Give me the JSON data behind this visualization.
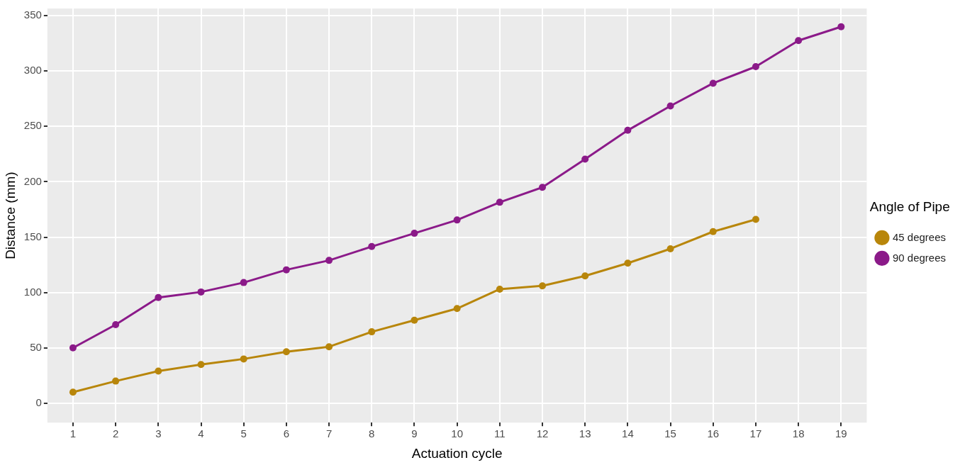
{
  "chart_data": {
    "type": "line",
    "xlabel": "Actuation cycle",
    "ylabel": "Distance (mm)",
    "legend_title": "Angle of Pipe",
    "legend": "right",
    "grid": true,
    "marker": "circle",
    "line_style": "solid",
    "xlim": [
      0.4,
      19.6
    ],
    "xticks": [
      1,
      2,
      3,
      4,
      5,
      6,
      7,
      8,
      9,
      10,
      11,
      12,
      13,
      14,
      15,
      16,
      17,
      18,
      19
    ],
    "ylim": [
      -17.5,
      356.5
    ],
    "yticks": [
      0,
      50,
      100,
      150,
      200,
      250,
      300,
      350
    ],
    "series": [
      {
        "name": "45 degrees",
        "color": "#b8860b",
        "x": [
          1,
          2,
          3,
          4,
          5,
          6,
          7,
          8,
          9,
          10,
          11,
          12,
          13,
          14,
          15,
          16,
          17
        ],
        "values": [
          10,
          20,
          29,
          35,
          40,
          46.5,
          51,
          64.5,
          75,
          85.5,
          103,
          106,
          115,
          126.5,
          139.5,
          155,
          166
        ]
      },
      {
        "name": "90 degrees",
        "color": "#8b1a89",
        "x": [
          1,
          2,
          3,
          4,
          5,
          6,
          7,
          8,
          9,
          10,
          11,
          12,
          13,
          14,
          15,
          16,
          17,
          18,
          19
        ],
        "values": [
          50,
          71,
          95.5,
          100.5,
          109,
          120.5,
          129,
          141.5,
          153.5,
          165.5,
          181.5,
          195,
          220.5,
          246.5,
          268.5,
          289,
          304,
          327.5,
          340
        ]
      }
    ]
  }
}
